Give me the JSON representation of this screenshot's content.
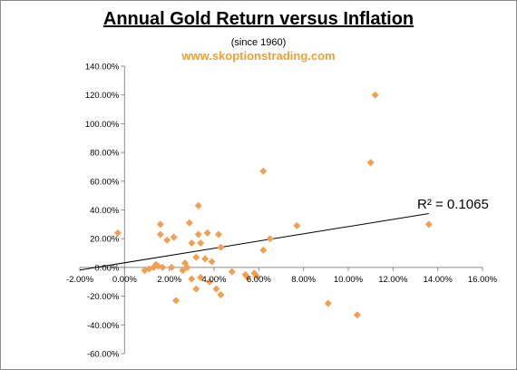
{
  "title": "Annual Gold Return versus Inflation",
  "subtitle": "(since 1960)",
  "website": "www.skoptionstrading.com",
  "marker_color": "#f0a050",
  "chart_data": {
    "type": "scatter",
    "xlim": [
      -0.02,
      0.16
    ],
    "ylim": [
      -0.6,
      1.4
    ],
    "x_ticks": [
      -0.02,
      0.0,
      0.02,
      0.04,
      0.06,
      0.08,
      0.1,
      0.12,
      0.14,
      0.16
    ],
    "y_ticks": [
      1.4,
      1.2,
      1.0,
      0.8,
      0.6,
      0.4,
      0.2,
      0.0,
      -0.2,
      -0.4,
      -0.6
    ],
    "x_tick_labels": [
      "-2.00%",
      "0.00%",
      "2.00%",
      "4.00%",
      "6.00%",
      "8.00%",
      "10.00%",
      "12.00%",
      "14.00%",
      "16.00%"
    ],
    "y_tick_labels": [
      "140.00%",
      "120.00%",
      "100.00%",
      "80.00%",
      "60.00%",
      "40.00%",
      "20.00%",
      "0.00%",
      "-20.00%",
      "-40.00%",
      "-60.00%"
    ],
    "grid": false,
    "trendline": {
      "x": [
        -0.02,
        0.136
      ],
      "y": [
        -0.018,
        0.375
      ],
      "label": "R² = 0.1065"
    },
    "points": [
      [
        -0.003,
        0.24
      ],
      [
        0.009,
        -0.02
      ],
      [
        0.011,
        -0.01
      ],
      [
        0.013,
        0.0
      ],
      [
        0.014,
        0.02
      ],
      [
        0.015,
        0.01
      ],
      [
        0.016,
        0.3
      ],
      [
        0.016,
        0.23
      ],
      [
        0.017,
        0.0
      ],
      [
        0.019,
        0.19
      ],
      [
        0.021,
        0.0
      ],
      [
        0.022,
        0.21
      ],
      [
        0.023,
        -0.23
      ],
      [
        0.026,
        -0.02
      ],
      [
        0.027,
        0.03
      ],
      [
        0.028,
        0.0
      ],
      [
        0.029,
        0.31
      ],
      [
        0.03,
        0.17
      ],
      [
        0.03,
        -0.08
      ],
      [
        0.032,
        0.07
      ],
      [
        0.032,
        -0.15
      ],
      [
        0.033,
        0.43
      ],
      [
        0.033,
        0.23
      ],
      [
        0.034,
        0.17
      ],
      [
        0.034,
        -0.07
      ],
      [
        0.036,
        0.06
      ],
      [
        0.037,
        0.24
      ],
      [
        0.038,
        -0.1
      ],
      [
        0.039,
        0.04
      ],
      [
        0.041,
        -0.15
      ],
      [
        0.042,
        0.23
      ],
      [
        0.043,
        0.14
      ],
      [
        0.043,
        -0.19
      ],
      [
        0.048,
        -0.03
      ],
      [
        0.054,
        -0.05
      ],
      [
        0.055,
        -0.07
      ],
      [
        0.058,
        -0.04
      ],
      [
        0.059,
        -0.06
      ],
      [
        0.062,
        0.67
      ],
      [
        0.062,
        0.12
      ],
      [
        0.065,
        0.2
      ],
      [
        0.077,
        0.29
      ],
      [
        0.091,
        -0.25
      ],
      [
        0.104,
        -0.33
      ],
      [
        0.11,
        0.73
      ],
      [
        0.112,
        1.2
      ],
      [
        0.136,
        0.3
      ]
    ]
  }
}
